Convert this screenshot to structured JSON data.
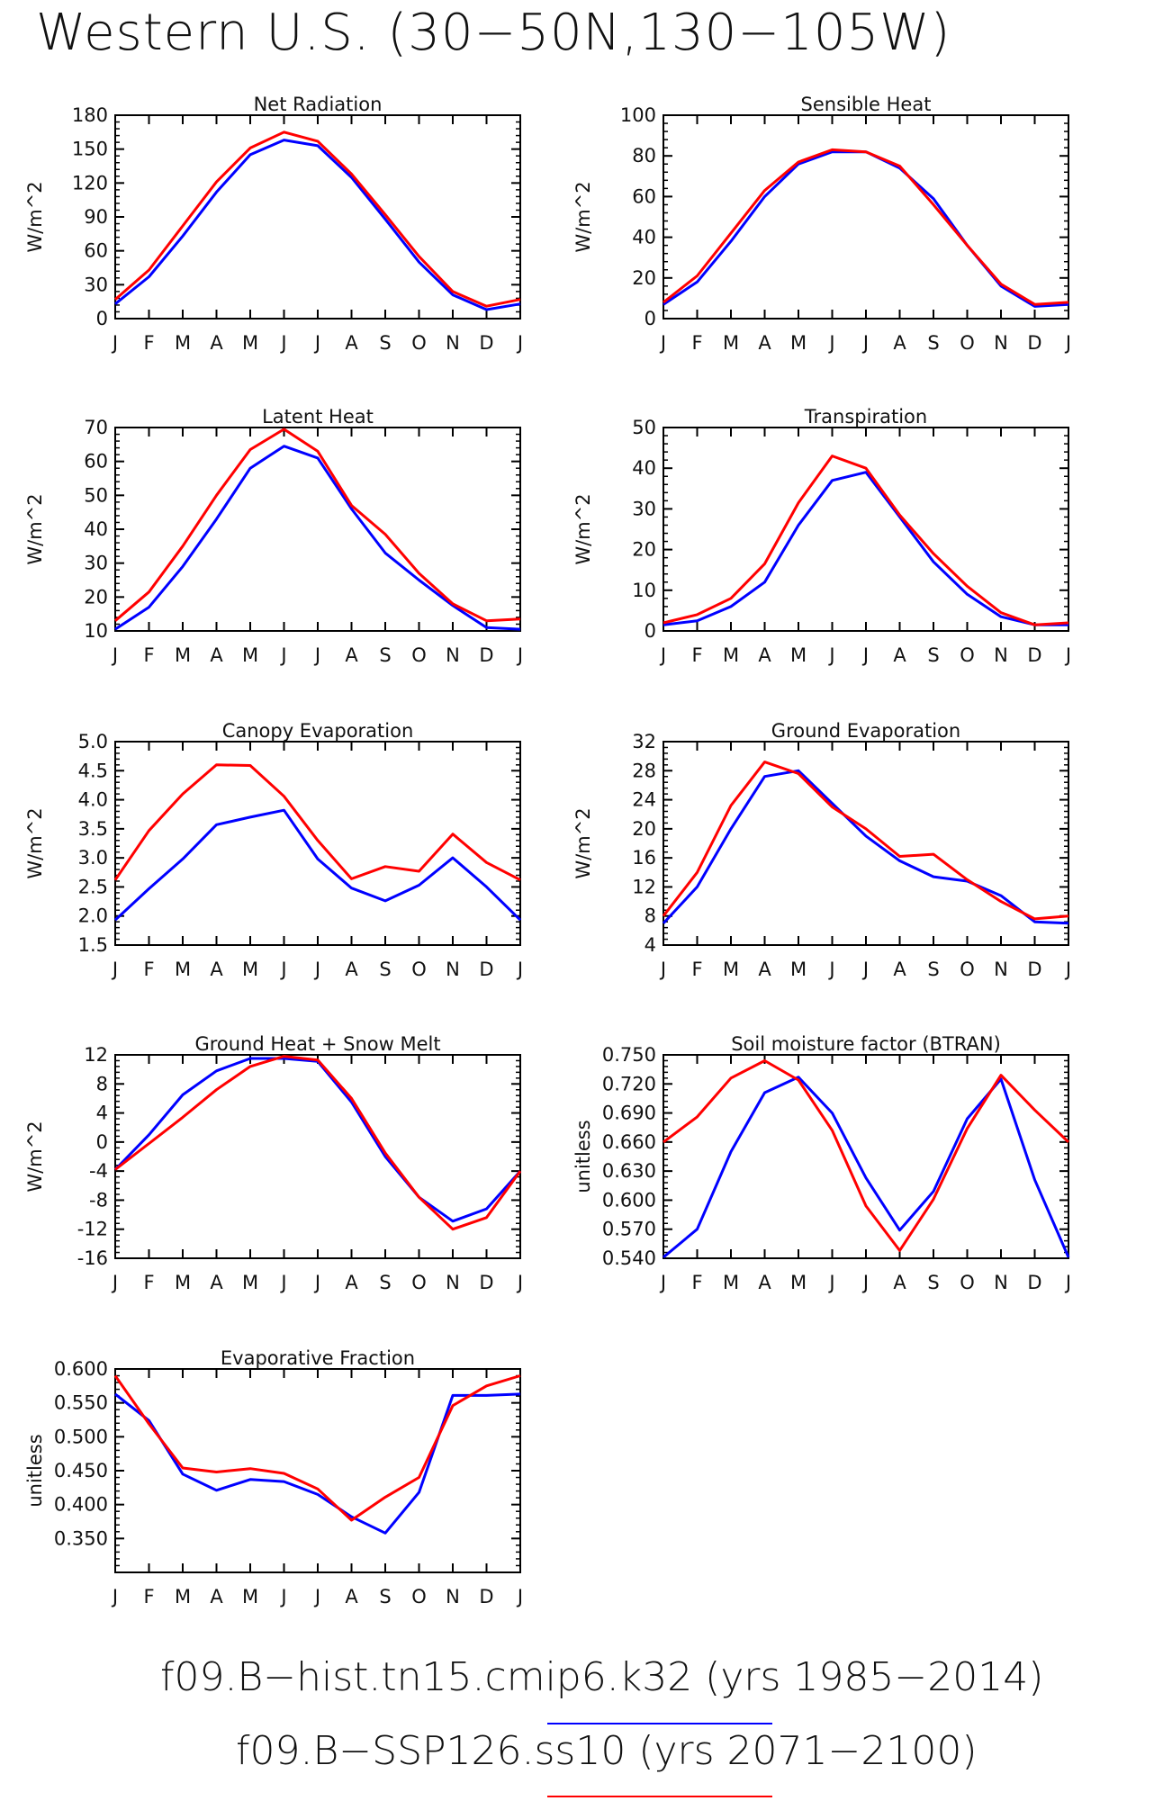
{
  "title": "Western U.S. (30−50N,130−105W)",
  "colors": {
    "case1": "#0000ff",
    "case2": "#ff0000",
    "axis": "#000000"
  },
  "legend": [
    {
      "label": "f09.B−hist.tn15.cmip6.k32 (yrs 1985−2014)",
      "color": "#0000ff"
    },
    {
      "label": "f09.B−SSP126.ss10 (yrs 2071−2100)",
      "color": "#ff0000"
    }
  ],
  "chart_data": [
    {
      "type": "line",
      "title": "Net Radiation",
      "ylabel": "W/m^2",
      "x": [
        "J",
        "F",
        "M",
        "A",
        "M",
        "J",
        "J",
        "A",
        "S",
        "O",
        "N",
        "D",
        "J"
      ],
      "ylim": [
        0,
        180
      ],
      "yticks": [
        "0",
        "30",
        "60",
        "90",
        "120",
        "150",
        "180"
      ],
      "ytick_values": [
        0,
        30,
        60,
        90,
        120,
        150,
        180
      ],
      "series": [
        {
          "color": "#0000ff",
          "values": [
            13,
            37,
            73,
            112,
            145,
            158,
            153,
            125,
            88,
            50,
            21,
            8,
            13
          ]
        },
        {
          "color": "#ff0000",
          "values": [
            17,
            43,
            82,
            121,
            151,
            165,
            157,
            128,
            92,
            55,
            24,
            11,
            17
          ]
        }
      ]
    },
    {
      "type": "line",
      "title": "Sensible Heat",
      "ylabel": "W/m^2",
      "x": [
        "J",
        "F",
        "M",
        "A",
        "M",
        "J",
        "J",
        "A",
        "S",
        "O",
        "N",
        "D",
        "J"
      ],
      "ylim": [
        0,
        100
      ],
      "yticks": [
        "0",
        "20",
        "40",
        "60",
        "80",
        "100"
      ],
      "ytick_values": [
        0,
        20,
        40,
        60,
        80,
        100
      ],
      "series": [
        {
          "color": "#0000ff",
          "values": [
            7,
            18,
            38,
            60,
            76,
            82,
            82,
            74,
            59,
            36,
            16,
            6,
            7
          ]
        },
        {
          "color": "#ff0000",
          "values": [
            8,
            21,
            42,
            63,
            77,
            83,
            82,
            75,
            56,
            36,
            17,
            7,
            8
          ]
        }
      ]
    },
    {
      "type": "line",
      "title": "Latent Heat",
      "ylabel": "W/m^2",
      "x": [
        "J",
        "F",
        "M",
        "A",
        "M",
        "J",
        "J",
        "A",
        "S",
        "O",
        "N",
        "D",
        "J"
      ],
      "ylim": [
        10,
        70
      ],
      "yticks": [
        "10",
        "20",
        "30",
        "40",
        "50",
        "60",
        "70"
      ],
      "ytick_values": [
        10,
        20,
        30,
        40,
        50,
        60,
        70
      ],
      "series": [
        {
          "color": "#0000ff",
          "values": [
            10.5,
            17,
            29,
            43,
            58,
            64.5,
            61,
            46,
            33,
            25,
            17.5,
            11,
            10.5
          ]
        },
        {
          "color": "#ff0000",
          "values": [
            13,
            21.5,
            35,
            50,
            63.5,
            69.5,
            63,
            47,
            38.5,
            27,
            18,
            13,
            13.5
          ]
        }
      ]
    },
    {
      "type": "line",
      "title": "Transpiration",
      "ylabel": "W/m^2",
      "x": [
        "J",
        "F",
        "M",
        "A",
        "M",
        "J",
        "J",
        "A",
        "S",
        "O",
        "N",
        "D",
        "J"
      ],
      "ylim": [
        0,
        50
      ],
      "yticks": [
        "0",
        "10",
        "20",
        "30",
        "40",
        "50"
      ],
      "ytick_values": [
        0,
        10,
        20,
        30,
        40,
        50
      ],
      "series": [
        {
          "color": "#0000ff",
          "values": [
            1.5,
            2.5,
            6,
            12,
            26,
            37,
            39,
            28,
            17,
            9,
            3.5,
            1.5,
            1.5
          ]
        },
        {
          "color": "#ff0000",
          "values": [
            2,
            4,
            8,
            16.5,
            31.5,
            43,
            40,
            28.5,
            19,
            11,
            4.5,
            1.5,
            2
          ]
        }
      ]
    },
    {
      "type": "line",
      "title": "Canopy Evaporation",
      "ylabel": "W/m^2",
      "x": [
        "J",
        "F",
        "M",
        "A",
        "M",
        "J",
        "J",
        "A",
        "S",
        "O",
        "N",
        "D",
        "J"
      ],
      "ylim": [
        1.5,
        5.0
      ],
      "yticks": [
        "1.5",
        "2.0",
        "2.5",
        "3.0",
        "3.5",
        "4.0",
        "4.5",
        "5.0"
      ],
      "ytick_values": [
        1.5,
        2.0,
        2.5,
        3.0,
        3.5,
        4.0,
        4.5,
        5.0
      ],
      "series": [
        {
          "color": "#0000ff",
          "values": [
            1.93,
            2.47,
            2.98,
            3.57,
            3.7,
            3.82,
            2.98,
            2.48,
            2.26,
            2.53,
            3.0,
            2.5,
            1.93
          ]
        },
        {
          "color": "#ff0000",
          "values": [
            2.62,
            3.47,
            4.1,
            4.6,
            4.59,
            4.06,
            3.3,
            2.64,
            2.85,
            2.77,
            3.41,
            2.92,
            2.62
          ]
        }
      ]
    },
    {
      "type": "line",
      "title": "Ground Evaporation",
      "ylabel": "W/m^2",
      "x": [
        "J",
        "F",
        "M",
        "A",
        "M",
        "J",
        "J",
        "A",
        "S",
        "O",
        "N",
        "D",
        "J"
      ],
      "ylim": [
        4,
        32
      ],
      "yticks": [
        "4",
        "8",
        "12",
        "16",
        "20",
        "24",
        "28",
        "32"
      ],
      "ytick_values": [
        4,
        8,
        12,
        16,
        20,
        24,
        28,
        32
      ],
      "series": [
        {
          "color": "#0000ff",
          "values": [
            7,
            12,
            20,
            27.2,
            28,
            23.5,
            19,
            15.6,
            13.4,
            12.8,
            10.8,
            7.2,
            7
          ]
        },
        {
          "color": "#ff0000",
          "values": [
            8,
            14,
            23.2,
            29.2,
            27.6,
            23,
            20,
            16.2,
            16.5,
            13,
            10,
            7.6,
            8
          ]
        }
      ]
    },
    {
      "type": "line",
      "title": "Ground Heat + Snow Melt",
      "ylabel": "W/m^2",
      "x": [
        "J",
        "F",
        "M",
        "A",
        "M",
        "J",
        "J",
        "A",
        "S",
        "O",
        "N",
        "D",
        "J"
      ],
      "ylim": [
        -16,
        12
      ],
      "yticks": [
        "-16",
        "-12",
        "-8",
        "-4",
        "0",
        "4",
        "8",
        "12"
      ],
      "ytick_values": [
        -16,
        -12,
        -8,
        -4,
        0,
        4,
        8,
        12
      ],
      "series": [
        {
          "color": "#0000ff",
          "values": [
            -3.8,
            1.0,
            6.5,
            9.8,
            11.5,
            11.5,
            11.1,
            5.5,
            -2.0,
            -7.6,
            -10.9,
            -9.2,
            -4.0
          ]
        },
        {
          "color": "#ff0000",
          "values": [
            -3.8,
            -0.2,
            3.4,
            7.2,
            10.4,
            11.8,
            11.3,
            6.0,
            -1.5,
            -7.6,
            -12.0,
            -10.4,
            -4.0
          ]
        }
      ]
    },
    {
      "type": "line",
      "title": "Soil moisture factor (BTRAN)",
      "ylabel": "unitless",
      "x": [
        "J",
        "F",
        "M",
        "A",
        "M",
        "J",
        "J",
        "A",
        "S",
        "O",
        "N",
        "D",
        "J"
      ],
      "ylim": [
        0.54,
        0.75
      ],
      "yticks": [
        "0.540",
        "0.570",
        "0.600",
        "0.630",
        "0.660",
        "0.690",
        "0.720",
        "0.750"
      ],
      "ytick_values": [
        0.54,
        0.57,
        0.6,
        0.63,
        0.66,
        0.69,
        0.72,
        0.75
      ],
      "series": [
        {
          "color": "#0000ff",
          "values": [
            0.541,
            0.57,
            0.65,
            0.711,
            0.727,
            0.69,
            0.623,
            0.569,
            0.609,
            0.684,
            0.725,
            0.621,
            0.541
          ]
        },
        {
          "color": "#ff0000",
          "values": [
            0.66,
            0.686,
            0.726,
            0.744,
            0.724,
            0.672,
            0.594,
            0.548,
            0.601,
            0.674,
            0.729,
            0.693,
            0.66
          ]
        }
      ]
    },
    {
      "type": "line",
      "title": "Evaporative Fraction",
      "ylabel": "unitless",
      "x": [
        "J",
        "F",
        "M",
        "A",
        "M",
        "J",
        "J",
        "A",
        "S",
        "O",
        "N",
        "D",
        "J"
      ],
      "ylim": [
        0.3,
        0.6
      ],
      "yticks": [
        "0.350",
        "0.400",
        "0.450",
        "0.500",
        "0.550",
        "0.600"
      ],
      "ytick_values": [
        0.35,
        0.4,
        0.45,
        0.5,
        0.55,
        0.6
      ],
      "series": [
        {
          "color": "#0000ff",
          "values": [
            0.563,
            0.524,
            0.445,
            0.421,
            0.437,
            0.434,
            0.415,
            0.382,
            0.358,
            0.418,
            0.561,
            0.561,
            0.563
          ]
        },
        {
          "color": "#ff0000",
          "values": [
            0.59,
            0.519,
            0.454,
            0.448,
            0.453,
            0.446,
            0.423,
            0.377,
            0.411,
            0.44,
            0.546,
            0.575,
            0.59
          ]
        }
      ]
    }
  ]
}
